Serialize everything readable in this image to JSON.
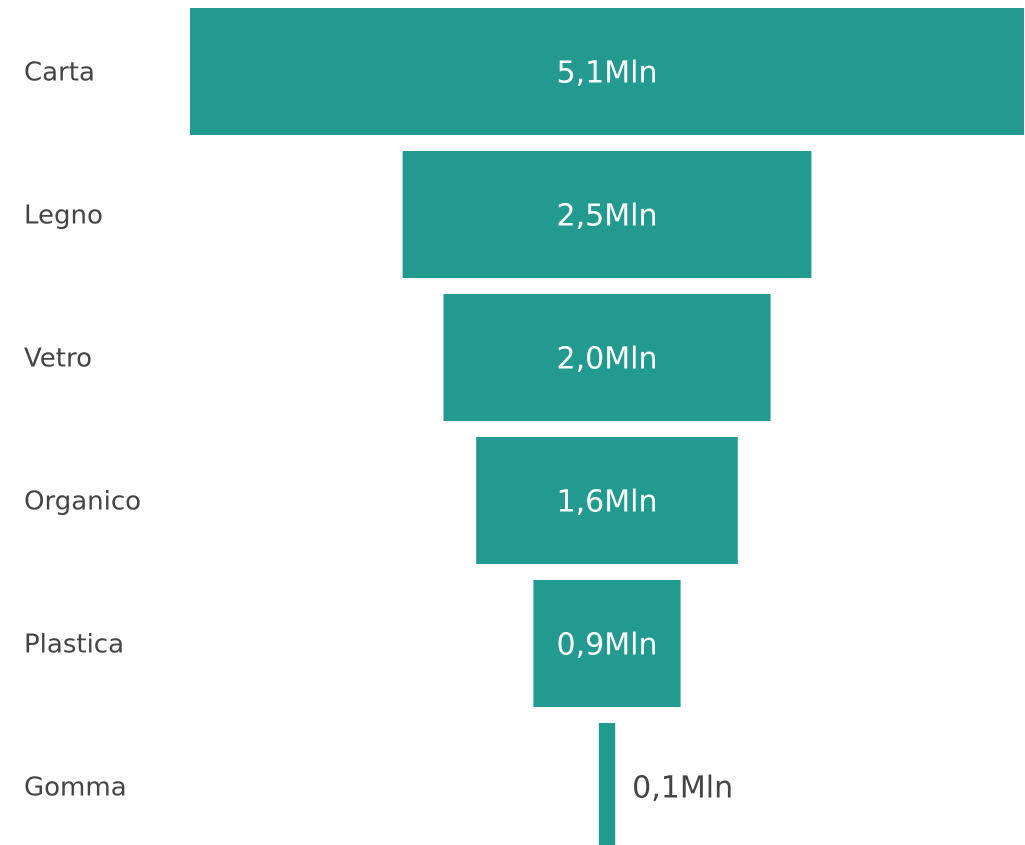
{
  "chart_data": {
    "type": "bar",
    "variant": "funnel",
    "orientation": "horizontal",
    "categories": [
      "Carta",
      "Legno",
      "Vetro",
      "Organico",
      "Plastica",
      "Gomma"
    ],
    "values": [
      5.1,
      2.5,
      2.0,
      1.6,
      0.9,
      0.1
    ],
    "value_labels": [
      "5,1Mln",
      "2,5Mln",
      "2,0Mln",
      "1,6Mln",
      "0,9Mln",
      "0,1Mln"
    ],
    "unit": "Mln",
    "title": "",
    "xlabel": "",
    "ylabel": "",
    "grid": false,
    "legend": "none"
  },
  "colors": {
    "bar": "#229a8f",
    "label_inside": "#ffffff",
    "label_outside": "#444444",
    "category_text": "#444444",
    "background": "#ffffff"
  }
}
